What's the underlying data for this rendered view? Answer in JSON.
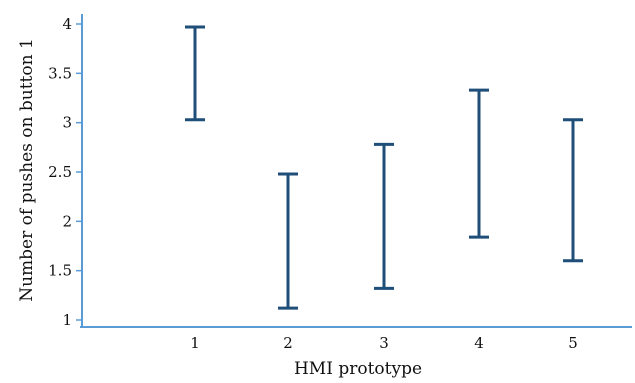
{
  "chart_data": {
    "type": "errorbar",
    "title": "",
    "xlabel": "HMI prototype",
    "ylabel": "Number of pushes on button 1",
    "categories": [
      "1",
      "2",
      "3",
      "4",
      "5"
    ],
    "series": [
      {
        "low": [
          3.03,
          1.12,
          1.32,
          1.84,
          1.6
        ],
        "high": [
          3.97,
          2.48,
          2.78,
          3.33,
          3.03
        ]
      }
    ],
    "ylim": [
      1,
      4
    ],
    "yticks": [
      "1",
      "1.5",
      "2",
      "2.5",
      "3",
      "3.5",
      "4"
    ],
    "grid": false,
    "legend": "none",
    "colors": {
      "series": "#1f4e79",
      "axis": "#5b9bd5",
      "text": "#111111"
    }
  }
}
